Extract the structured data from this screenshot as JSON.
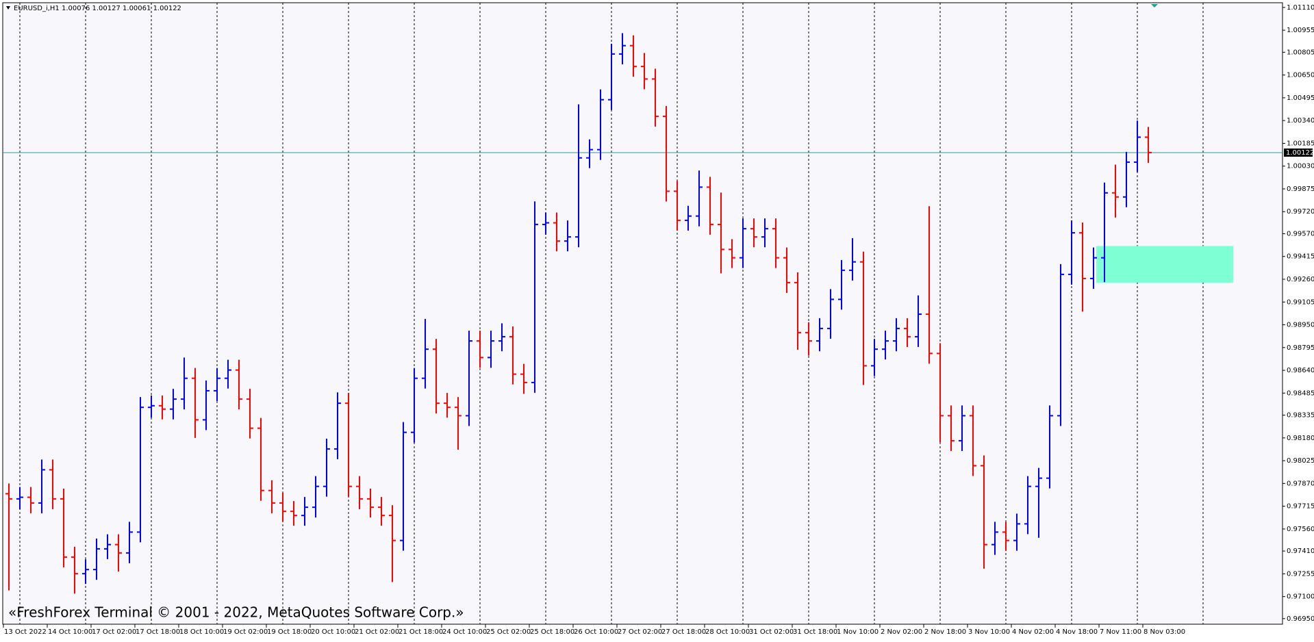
{
  "chart_data": {
    "type": "ohlc",
    "title": "EURUSD_i,H1  1.00076 1.00127 1.00061 1.00122",
    "watermark": "«FreshForex Terminal © 2001 - 2022, MetaQuotes Software Corp.»",
    "up_color": "#0000ff",
    "down_color": "#ff0000",
    "xlim": [
      -0.25,
      467
    ],
    "ylim": [
      0.96912,
      1.01142
    ],
    "xticks": [
      {
        "value": 0,
        "label": "13 Oct 2022"
      },
      {
        "value": 16,
        "label": "14 Oct 10:00"
      },
      {
        "value": 32,
        "label": "17 Oct 02:00"
      },
      {
        "value": 48,
        "label": "17 Oct 18:00"
      },
      {
        "value": 64,
        "label": "18 Oct 10:00"
      },
      {
        "value": 80,
        "label": "19 Oct 02:00"
      },
      {
        "value": 96,
        "label": "19 Oct 18:00"
      },
      {
        "value": 112,
        "label": "20 Oct 10:00"
      },
      {
        "value": 128,
        "label": "21 Oct 02:00"
      },
      {
        "value": 144,
        "label": "21 Oct 18:00"
      },
      {
        "value": 160,
        "label": "24 Oct 10:00"
      },
      {
        "value": 176,
        "label": "25 Oct 02:00"
      },
      {
        "value": 192,
        "label": "25 Oct 18:00"
      },
      {
        "value": 208,
        "label": "26 Oct 10:00"
      },
      {
        "value": 224,
        "label": "27 Oct 02:00"
      },
      {
        "value": 240,
        "label": "27 Oct 18:00"
      },
      {
        "value": 256,
        "label": "28 Oct 10:00"
      },
      {
        "value": 272,
        "label": "31 Oct 02:00"
      },
      {
        "value": 288,
        "label": "31 Oct 18:00"
      },
      {
        "value": 304,
        "label": "1 Nov 10:00"
      },
      {
        "value": 320,
        "label": "2 Nov 02:00"
      },
      {
        "value": 336,
        "label": "2 Nov 18:00"
      },
      {
        "value": 352,
        "label": "3 Nov 10:00"
      },
      {
        "value": 368,
        "label": "4 Nov 02:00"
      },
      {
        "value": 384,
        "label": "4 Nov 18:00"
      },
      {
        "value": 400,
        "label": "7 Nov 11:00"
      },
      {
        "value": 416,
        "label": "8 Nov 03:00"
      }
    ],
    "xgrid": [
      6,
      30,
      54,
      78,
      102,
      126,
      150,
      174,
      198,
      222,
      246,
      270,
      294,
      318,
      342,
      366,
      390,
      414,
      438
    ],
    "yticks": [
      {
        "value": 1.0111,
        "label": "1.01110"
      },
      1.00955,
      1.00805,
      {
        "value": 1.0065,
        "label": "1.00650"
      },
      1.00495,
      {
        "value": 1.0034,
        "label": "1.00340"
      },
      1.00185,
      {
        "value": 1.0003,
        "label": "1.00030"
      },
      0.99875,
      {
        "value": 0.9972,
        "label": "0.99720"
      },
      {
        "value": 0.9957,
        "label": "0.99570"
      },
      0.99415,
      {
        "value": 0.9926,
        "label": "0.99260"
      },
      0.99105,
      {
        "value": 0.9895,
        "label": "0.98950"
      },
      0.98795,
      {
        "value": 0.9864,
        "label": "0.98640"
      },
      0.98485,
      0.98335,
      {
        "value": 0.9818,
        "label": "0.98180"
      },
      0.98025,
      {
        "value": 0.9787,
        "label": "0.97870"
      },
      0.97715,
      {
        "value": 0.9756,
        "label": "0.97560"
      },
      {
        "value": 0.9741,
        "label": "0.97410"
      },
      0.97255,
      {
        "value": 0.971,
        "label": "0.97100"
      },
      {
        "value": 0.9695,
        "label": "0.96950"
      }
    ],
    "price_line": {
      "value": 1.00122,
      "color": "#20a090"
    },
    "zone": {
      "x": [
        399,
        449
      ],
      "y": [
        0.99237,
        0.99486
      ],
      "color": "#7fffd4"
    },
    "x": [
      2,
      6,
      10,
      14,
      18,
      22,
      26,
      30,
      34,
      38,
      42,
      46,
      50,
      54,
      58,
      62,
      66,
      70,
      74,
      78,
      82,
      86,
      90,
      94,
      98,
      102,
      106,
      110,
      114,
      118,
      122,
      126,
      130,
      134,
      138,
      142,
      146,
      150,
      154,
      158,
      162,
      166,
      170,
      174,
      178,
      182,
      186,
      190,
      194,
      198,
      202,
      206,
      210,
      214,
      218,
      222,
      226,
      230,
      234,
      238,
      242,
      246,
      250,
      254,
      258,
      262,
      266,
      270,
      274,
      278,
      282,
      286,
      290,
      294,
      298,
      302,
      306,
      310,
      314,
      318,
      322,
      326,
      330,
      334,
      338,
      342,
      346,
      350,
      354,
      358,
      362,
      366,
      370,
      374,
      378,
      382,
      386,
      390,
      394,
      398,
      402,
      406,
      410,
      414,
      418
    ],
    "open": [
      0.978,
      0.97765,
      0.97776,
      0.97737,
      0.97963,
      0.97765,
      0.97369,
      0.97256,
      0.97284,
      0.97425,
      0.97454,
      0.97397,
      0.97539,
      0.98388,
      0.98399,
      0.98376,
      0.98444,
      0.98586,
      0.98303,
      0.98501,
      0.98586,
      0.98642,
      0.98444,
      0.98246,
      0.97822,
      0.97737,
      0.9768,
      0.97652,
      0.97708,
      0.9785,
      0.98105,
      0.98416,
      0.9785,
      0.97765,
      0.97708,
      0.97652,
      0.97482,
      0.98218,
      0.98586,
      0.98784,
      0.98416,
      0.98388,
      0.98331,
      0.9884,
      0.98727,
      0.9884,
      0.98869,
      0.98614,
      0.98557,
      0.99633,
      0.99644,
      0.9952,
      0.99548,
      1.00086,
      1.00142,
      1.00482,
      1.00793,
      1.0085,
      1.00708,
      1.00623,
      1.00369,
      0.99859,
      0.99661,
      0.9969,
      0.99887,
      0.99633,
      0.99463,
      0.99406,
      0.99604,
      0.99548,
      0.99604,
      0.99406,
      0.99237,
      0.98897,
      0.9884,
      0.98925,
      0.99123,
      0.99321,
      0.99378,
      0.98671,
      0.98784,
      0.9884,
      0.98925,
      0.98869,
      0.99022,
      0.98755,
      0.98331,
      0.98161,
      0.98331,
      0.97991,
      0.97454,
      0.97539,
      0.97482,
      0.97595,
      0.9785,
      0.97906,
      0.98331,
      0.99293,
      0.99576,
      0.99265,
      0.99406,
      0.99848,
      0.9982,
      1.00057,
      1.00227
    ],
    "high": [
      0.9787,
      0.97846,
      0.97846,
      0.98033,
      0.98033,
      0.97835,
      0.97439,
      0.97354,
      0.97495,
      0.97524,
      0.97524,
      0.97609,
      0.98458,
      0.98469,
      0.98469,
      0.98514,
      0.98727,
      0.98656,
      0.98571,
      0.98656,
      0.98712,
      0.98712,
      0.98514,
      0.98316,
      0.97892,
      0.97807,
      0.9775,
      0.97778,
      0.9792,
      0.98175,
      0.9849,
      0.98486,
      0.9792,
      0.97835,
      0.97778,
      0.97722,
      0.98288,
      0.98656,
      0.9899,
      0.98854,
      0.98486,
      0.98458,
      0.9891,
      0.9891,
      0.9891,
      0.9896,
      0.98939,
      0.98684,
      0.9979,
      0.99714,
      0.99714,
      0.9966,
      1.0045,
      1.00212,
      1.00552,
      1.00863,
      1.00935,
      1.0092,
      1.008,
      1.00693,
      1.00439,
      0.99929,
      0.9976,
      1.0,
      0.99957,
      0.9985,
      0.99533,
      0.99674,
      0.99674,
      0.99674,
      0.99674,
      0.99476,
      0.99307,
      0.98967,
      0.98995,
      0.99193,
      0.99391,
      0.9954,
      0.99448,
      0.98854,
      0.9891,
      0.98995,
      0.98995,
      0.9915,
      0.99757,
      0.98825,
      0.98401,
      0.98401,
      0.98401,
      0.98061,
      0.97609,
      0.97609,
      0.97665,
      0.9792,
      0.97976,
      0.98401,
      0.99363,
      0.9966,
      0.99646,
      0.99476,
      0.99918,
      1.0004,
      1.00127,
      1.0034,
      1.00297
    ],
    "low": [
      0.97142,
      0.97695,
      0.97667,
      0.97667,
      0.97695,
      0.97299,
      0.9712,
      0.97186,
      0.97214,
      0.97355,
      0.9727,
      0.97327,
      0.97469,
      0.98318,
      0.98306,
      0.98306,
      0.98374,
      0.9818,
      0.98233,
      0.98431,
      0.98516,
      0.98374,
      0.98176,
      0.97752,
      0.97667,
      0.9761,
      0.97582,
      0.97582,
      0.97638,
      0.9778,
      0.98035,
      0.9778,
      0.97695,
      0.97638,
      0.97582,
      0.97199,
      0.97412,
      0.98148,
      0.98516,
      0.98346,
      0.98318,
      0.981,
      0.98261,
      0.98657,
      0.98657,
      0.9877,
      0.98544,
      0.9848,
      0.98487,
      0.99563,
      0.9945,
      0.9945,
      0.99478,
      1.00016,
      1.00072,
      1.00412,
      1.00723,
      1.00638,
      1.00553,
      1.00299,
      0.99789,
      0.99591,
      0.99591,
      0.9962,
      0.99563,
      0.993,
      0.99336,
      0.99336,
      0.99478,
      0.99478,
      0.99336,
      0.99167,
      0.9878,
      0.9874,
      0.9877,
      0.98855,
      0.99053,
      0.99251,
      0.9854,
      0.98601,
      0.98714,
      0.9877,
      0.98799,
      0.98799,
      0.98685,
      0.9815,
      0.98091,
      0.98091,
      0.97921,
      0.9729,
      0.97384,
      0.97412,
      0.97412,
      0.97525,
      0.975,
      0.97836,
      0.98261,
      0.99223,
      0.9904,
      0.99195,
      0.9924,
      0.9968,
      0.9975,
      0.9999,
      1.00052
    ],
    "close": [
      0.97765,
      0.97776,
      0.97737,
      0.97963,
      0.97765,
      0.97369,
      0.97256,
      0.97284,
      0.97425,
      0.97454,
      0.97397,
      0.97539,
      0.98388,
      0.98399,
      0.98376,
      0.98444,
      0.98586,
      0.98303,
      0.98501,
      0.98586,
      0.98642,
      0.98444,
      0.98246,
      0.97822,
      0.97737,
      0.9768,
      0.97652,
      0.97708,
      0.9785,
      0.98105,
      0.98416,
      0.9785,
      0.97765,
      0.97708,
      0.97652,
      0.97482,
      0.98218,
      0.98586,
      0.98784,
      0.98416,
      0.98388,
      0.98331,
      0.9884,
      0.98727,
      0.9884,
      0.98869,
      0.98614,
      0.98557,
      0.99633,
      0.99644,
      0.9952,
      0.99548,
      1.00086,
      1.00142,
      1.00482,
      1.00793,
      1.0085,
      1.00708,
      1.00623,
      1.00369,
      0.99859,
      0.99661,
      0.9969,
      0.99887,
      0.99633,
      0.99463,
      0.99406,
      0.99604,
      0.99548,
      0.99604,
      0.99406,
      0.99237,
      0.98897,
      0.9884,
      0.98925,
      0.99123,
      0.99321,
      0.99378,
      0.98671,
      0.98784,
      0.9884,
      0.98925,
      0.98869,
      0.99022,
      0.98755,
      0.98331,
      0.98161,
      0.98331,
      0.97991,
      0.97454,
      0.97539,
      0.97482,
      0.97595,
      0.9785,
      0.97906,
      0.98331,
      0.99293,
      0.99576,
      0.99265,
      0.99406,
      0.99848,
      0.9982,
      1.00057,
      1.00227,
      1.00122
    ]
  }
}
